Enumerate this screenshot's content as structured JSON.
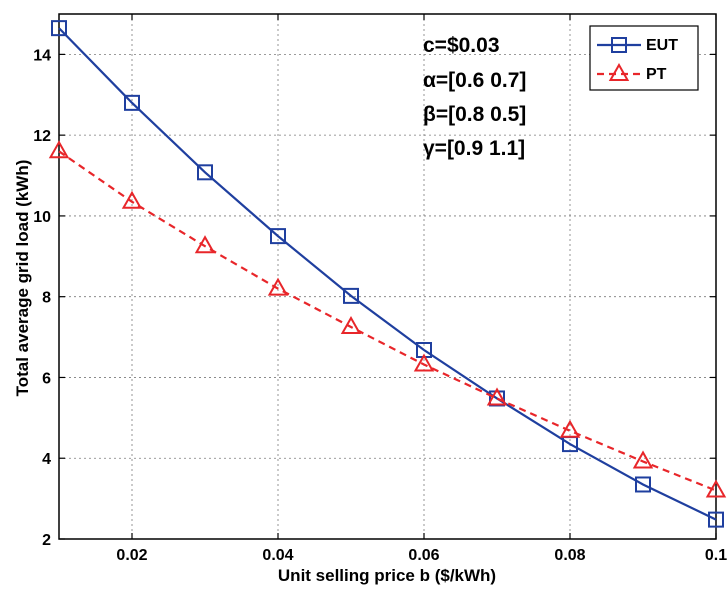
{
  "chart_data": {
    "type": "line",
    "xlabel": "Unit selling price b ($/kWh)",
    "ylabel": "Total average grid load (kWh)",
    "xlim": [
      0.01,
      0.1
    ],
    "ylim": [
      2,
      15
    ],
    "x_ticks": [
      0.02,
      0.04,
      0.06,
      0.08,
      0.1
    ],
    "x_tick_labels": [
      "0.02",
      "0.04",
      "0.06",
      "0.08",
      "0.1"
    ],
    "y_ticks": [
      2,
      4,
      6,
      8,
      10,
      12,
      14
    ],
    "y_tick_labels": [
      "2",
      "4",
      "6",
      "8",
      "10",
      "12",
      "14"
    ],
    "grid": true,
    "legend_position": "top-right",
    "x": [
      0.01,
      0.02,
      0.03,
      0.04,
      0.05,
      0.06,
      0.07,
      0.08,
      0.09,
      0.1
    ],
    "series": [
      {
        "name": "EUT",
        "color": "#1f3f9f",
        "line_style": "solid",
        "marker": "square",
        "values": [
          14.65,
          12.8,
          11.08,
          9.5,
          8.02,
          6.68,
          5.48,
          4.35,
          3.35,
          2.48
        ]
      },
      {
        "name": "PT",
        "color": "#e8262a",
        "line_style": "dashed",
        "marker": "triangle",
        "values": [
          11.6,
          10.35,
          9.25,
          8.2,
          7.25,
          6.32,
          5.48,
          4.68,
          3.92,
          3.2
        ]
      }
    ],
    "annotations": [
      "c=$0.03",
      "α=[0.6 0.7]",
      "β=[0.8 0.5]",
      "γ=[0.9 1.1]"
    ]
  }
}
